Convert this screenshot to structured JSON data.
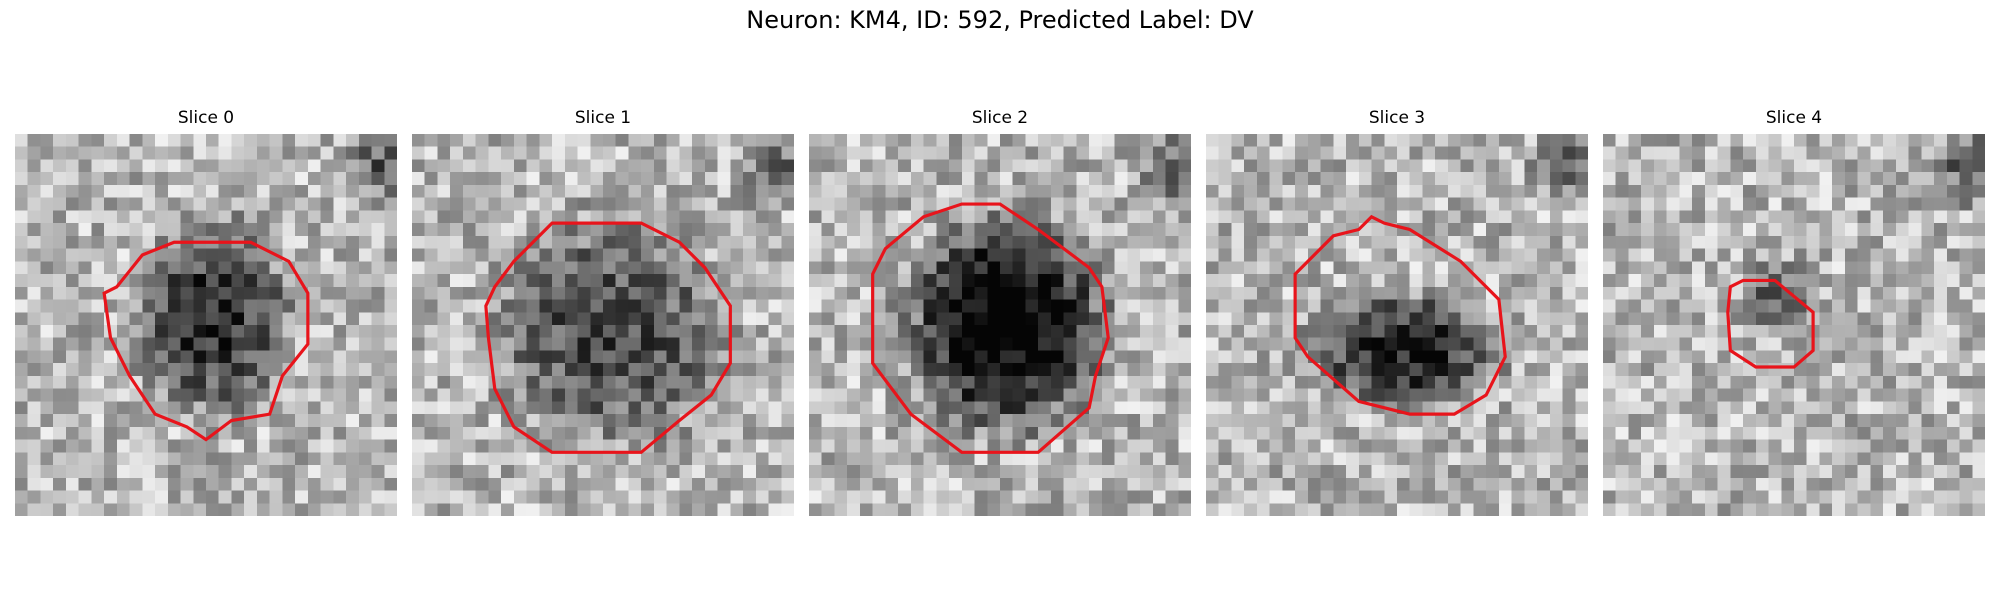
{
  "figure": {
    "title": "Neuron: KM4, ID: 592, Predicted Label: DV"
  },
  "panels": [
    {
      "title": "Slice 0",
      "dark_core": 0.55
    },
    {
      "title": "Slice 1",
      "dark_core": 0.45
    },
    {
      "title": "Slice 2",
      "dark_core": 0.8
    },
    {
      "title": "Slice 3",
      "dark_core": 0.6
    },
    {
      "title": "Slice 4",
      "dark_core": 0.35
    }
  ],
  "colors": {
    "contour": "#e8141b",
    "background": "#ffffff"
  }
}
